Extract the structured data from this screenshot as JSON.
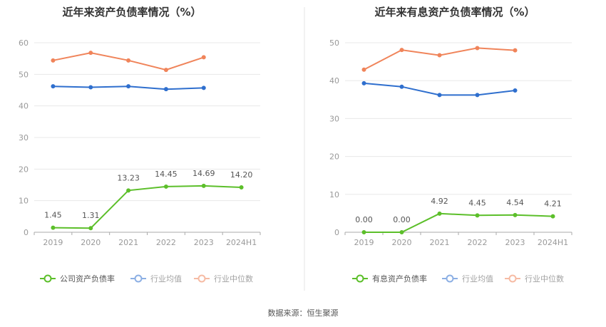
{
  "source": "数据来源：恒生聚源",
  "colors": {
    "company": "#5cbf2a",
    "industry_avg": "#2f6fce",
    "industry_median": "#f0845a"
  },
  "chart_data": [
    {
      "type": "line",
      "title": "近年来资产负债率情况（%）",
      "categories": [
        "2019",
        "2020",
        "2021",
        "2022",
        "2023",
        "2024H1"
      ],
      "ylim": [
        0,
        60
      ],
      "yticks": [
        0,
        10,
        20,
        30,
        40,
        50,
        60
      ],
      "grid": true,
      "legend_position": "bottom",
      "series": [
        {
          "name": "公司资产负债率",
          "key": "company",
          "values": [
            1.45,
            1.31,
            13.23,
            14.45,
            14.69,
            14.2
          ],
          "labels": [
            "1.45",
            "1.31",
            "13.23",
            "14.45",
            "14.69",
            "14.20"
          ]
        },
        {
          "name": "行业均值",
          "key": "industry_avg",
          "values": [
            46.2,
            45.9,
            46.2,
            45.3,
            45.7,
            null
          ]
        },
        {
          "name": "行业中位数",
          "key": "industry_median",
          "values": [
            54.4,
            56.8,
            54.4,
            51.4,
            55.4,
            null
          ]
        }
      ]
    },
    {
      "type": "line",
      "title": "近年来有息资产负债率情况（%）",
      "categories": [
        "2019",
        "2020",
        "2021",
        "2022",
        "2023",
        "2024H1"
      ],
      "ylim": [
        0,
        50
      ],
      "yticks": [
        0,
        10,
        20,
        30,
        40,
        50
      ],
      "grid": true,
      "legend_position": "bottom",
      "series": [
        {
          "name": "有息资产负债率",
          "key": "company",
          "values": [
            0.0,
            0.0,
            4.92,
            4.45,
            4.54,
            4.21
          ],
          "labels": [
            "0.00",
            "0.00",
            "4.92",
            "4.45",
            "4.54",
            "4.21"
          ]
        },
        {
          "name": "行业均值",
          "key": "industry_avg",
          "values": [
            39.3,
            38.4,
            36.2,
            36.2,
            37.4,
            null
          ]
        },
        {
          "name": "行业中位数",
          "key": "industry_median",
          "values": [
            42.9,
            48.1,
            46.7,
            48.6,
            48.0,
            null
          ]
        }
      ]
    }
  ]
}
